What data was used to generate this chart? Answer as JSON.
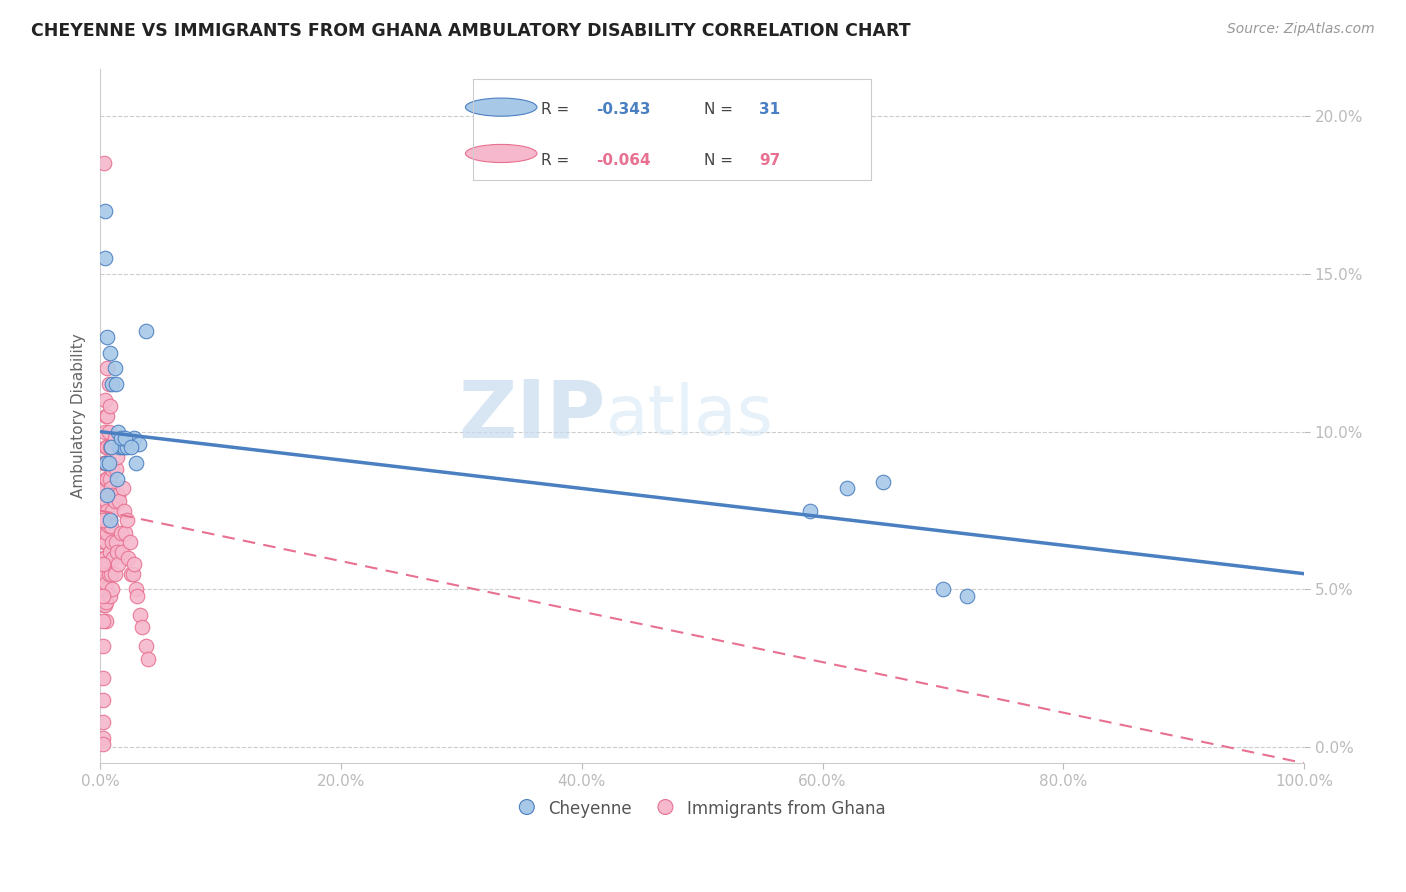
{
  "title": "CHEYENNE VS IMMIGRANTS FROM GHANA AMBULATORY DISABILITY CORRELATION CHART",
  "source": "Source: ZipAtlas.com",
  "ylabel": "Ambulatory Disability",
  "xlim": [
    0.0,
    1.0
  ],
  "ylim": [
    -0.005,
    0.215
  ],
  "xticks": [
    0.0,
    0.2,
    0.4,
    0.6,
    0.8,
    1.0
  ],
  "xtick_labels": [
    "0.0%",
    "20.0%",
    "40.0%",
    "60.0%",
    "80.0%",
    "100.0%"
  ],
  "yticks": [
    0.0,
    0.05,
    0.1,
    0.15,
    0.2
  ],
  "ytick_labels": [
    "0.0%",
    "5.0%",
    "10.0%",
    "15.0%",
    "20.0%"
  ],
  "legend_label1": "Cheyenne",
  "legend_label2": "Immigrants from Ghana",
  "cheyenne_color": "#a8c8e8",
  "ghana_color": "#f5b8cc",
  "line_color_cheyenne": "#4a7fc1",
  "line_color_ghana": "#e87090",
  "watermark_zip": "ZIP",
  "watermark_atlas": "atlas",
  "cheyenne_x": [
    0.004,
    0.004,
    0.006,
    0.008,
    0.01,
    0.012,
    0.013,
    0.015,
    0.016,
    0.018,
    0.02,
    0.022,
    0.024,
    0.028,
    0.032,
    0.038,
    0.005,
    0.007,
    0.009,
    0.014,
    0.017,
    0.021,
    0.026,
    0.03,
    0.006,
    0.008,
    0.59,
    0.62,
    0.65,
    0.7,
    0.72
  ],
  "cheyenne_y": [
    0.17,
    0.155,
    0.13,
    0.125,
    0.115,
    0.12,
    0.115,
    0.1,
    0.095,
    0.095,
    0.095,
    0.095,
    0.097,
    0.098,
    0.096,
    0.132,
    0.09,
    0.09,
    0.095,
    0.085,
    0.098,
    0.098,
    0.095,
    0.09,
    0.08,
    0.072,
    0.075,
    0.082,
    0.084,
    0.05,
    0.048
  ],
  "ghana_x": [
    0.003,
    0.003,
    0.003,
    0.003,
    0.003,
    0.003,
    0.003,
    0.003,
    0.003,
    0.003,
    0.004,
    0.004,
    0.004,
    0.004,
    0.004,
    0.004,
    0.004,
    0.004,
    0.004,
    0.004,
    0.005,
    0.005,
    0.005,
    0.005,
    0.005,
    0.005,
    0.005,
    0.005,
    0.005,
    0.005,
    0.006,
    0.006,
    0.006,
    0.006,
    0.006,
    0.006,
    0.006,
    0.007,
    0.007,
    0.007,
    0.007,
    0.007,
    0.007,
    0.008,
    0.008,
    0.008,
    0.008,
    0.008,
    0.008,
    0.009,
    0.009,
    0.009,
    0.009,
    0.01,
    0.01,
    0.01,
    0.01,
    0.011,
    0.011,
    0.012,
    0.012,
    0.012,
    0.013,
    0.013,
    0.014,
    0.014,
    0.015,
    0.015,
    0.016,
    0.017,
    0.018,
    0.018,
    0.019,
    0.02,
    0.021,
    0.022,
    0.023,
    0.025,
    0.026,
    0.027,
    0.028,
    0.03,
    0.031,
    0.033,
    0.035,
    0.038,
    0.04,
    0.002,
    0.002,
    0.002,
    0.002,
    0.002,
    0.002,
    0.002,
    0.002,
    0.002,
    0.002
  ],
  "ghana_y": [
    0.185,
    0.09,
    0.082,
    0.075,
    0.07,
    0.065,
    0.06,
    0.055,
    0.05,
    0.045,
    0.11,
    0.1,
    0.09,
    0.082,
    0.075,
    0.068,
    0.06,
    0.055,
    0.05,
    0.045,
    0.105,
    0.095,
    0.085,
    0.078,
    0.072,
    0.065,
    0.058,
    0.052,
    0.046,
    0.04,
    0.12,
    0.105,
    0.095,
    0.085,
    0.075,
    0.068,
    0.058,
    0.115,
    0.1,
    0.09,
    0.08,
    0.07,
    0.055,
    0.108,
    0.095,
    0.085,
    0.072,
    0.062,
    0.048,
    0.095,
    0.082,
    0.07,
    0.055,
    0.088,
    0.075,
    0.065,
    0.05,
    0.08,
    0.06,
    0.098,
    0.078,
    0.055,
    0.088,
    0.065,
    0.092,
    0.062,
    0.08,
    0.058,
    0.078,
    0.068,
    0.098,
    0.062,
    0.082,
    0.075,
    0.068,
    0.072,
    0.06,
    0.065,
    0.055,
    0.055,
    0.058,
    0.05,
    0.048,
    0.042,
    0.038,
    0.032,
    0.028,
    0.072,
    0.058,
    0.048,
    0.04,
    0.032,
    0.022,
    0.015,
    0.008,
    0.003,
    0.001
  ]
}
